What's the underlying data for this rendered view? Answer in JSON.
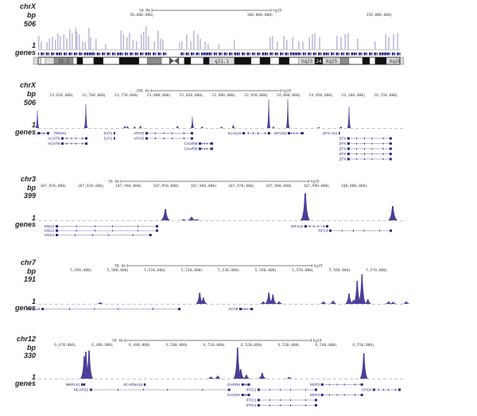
{
  "colors": {
    "signal": "#4b3f9a",
    "gene": "#2b2a83",
    "baseline": "#8a8a9a",
    "ruler": "#555555"
  },
  "assembly": "hg19",
  "panels": [
    {
      "chrom": "chrX",
      "unit_label": "bp",
      "max_label": "506",
      "min_label": "1",
      "genes_label": "genes",
      "scale": {
        "label": "50 Mb",
        "span_bp": 50000000
      },
      "ticks": [
        {
          "pos": 50000000,
          "label": "50,000,000"
        },
        {
          "pos": 100000000,
          "label": "100,000,000"
        },
        {
          "pos": 150000000,
          "label": "150,000,000"
        }
      ],
      "ymax": 506,
      "signal": [
        [
          2300000,
          250
        ],
        [
          3300000,
          150
        ],
        [
          5700000,
          130
        ],
        [
          6700000,
          200
        ],
        [
          8000000,
          230
        ],
        [
          9300000,
          180
        ],
        [
          10300000,
          300
        ],
        [
          11300000,
          250
        ],
        [
          12700000,
          280
        ],
        [
          14000000,
          200
        ],
        [
          15300000,
          380
        ],
        [
          16300000,
          300
        ],
        [
          17700000,
          400
        ],
        [
          18300000,
          330
        ],
        [
          19300000,
          280
        ],
        [
          20700000,
          150
        ],
        [
          21700000,
          130
        ],
        [
          23300000,
          400
        ],
        [
          24000000,
          230
        ],
        [
          26300000,
          200
        ],
        [
          30300000,
          100
        ],
        [
          36700000,
          350
        ],
        [
          37700000,
          280
        ],
        [
          39300000,
          230
        ],
        [
          40300000,
          300
        ],
        [
          41700000,
          180
        ],
        [
          43300000,
          150
        ],
        [
          45300000,
          280
        ],
        [
          46300000,
          330
        ],
        [
          47300000,
          430
        ],
        [
          48300000,
          250
        ],
        [
          50700000,
          150
        ],
        [
          52300000,
          350
        ],
        [
          53300000,
          200
        ],
        [
          54300000,
          180
        ],
        [
          61300000,
          130
        ],
        [
          62300000,
          150
        ],
        [
          64300000,
          280
        ],
        [
          66000000,
          150
        ],
        [
          67300000,
          350
        ],
        [
          69000000,
          280
        ],
        [
          70000000,
          200
        ],
        [
          72000000,
          150
        ],
        [
          73300000,
          100
        ],
        [
          77700000,
          100
        ],
        [
          84300000,
          180
        ],
        [
          99300000,
          230
        ],
        [
          100300000,
          250
        ],
        [
          102300000,
          150
        ],
        [
          105000000,
          250
        ],
        [
          106300000,
          180
        ],
        [
          108700000,
          230
        ],
        [
          111300000,
          150
        ],
        [
          113000000,
          150
        ],
        [
          115700000,
          230
        ],
        [
          117000000,
          280
        ],
        [
          118000000,
          300
        ],
        [
          120000000,
          230
        ],
        [
          127300000,
          250
        ],
        [
          129000000,
          230
        ],
        [
          130700000,
          280
        ],
        [
          132000000,
          300
        ],
        [
          136000000,
          200
        ],
        [
          143300000,
          150
        ],
        [
          147700000,
          280
        ],
        [
          149000000,
          230
        ],
        [
          151000000,
          280
        ],
        [
          152700000,
          300
        ]
      ],
      "ideogram": {
        "centromere": [
          57000000,
          61000000
        ],
        "bands": [
          [
            0,
            3300000,
            "light",
            ""
          ],
          [
            3300000,
            5000000,
            "white",
            ""
          ],
          [
            5000000,
            8700000,
            "light",
            ""
          ],
          [
            8700000,
            16700000,
            "gray",
            "22.2"
          ],
          [
            16700000,
            18300000,
            "white",
            ""
          ],
          [
            18300000,
            20700000,
            "black",
            ""
          ],
          [
            20700000,
            25300000,
            "white",
            ""
          ],
          [
            25300000,
            29300000,
            "black",
            ""
          ],
          [
            29300000,
            36000000,
            "white",
            ""
          ],
          [
            36000000,
            44300000,
            "black",
            ""
          ],
          [
            44300000,
            47700000,
            "white",
            ""
          ],
          [
            47700000,
            53700000,
            "gray",
            ""
          ],
          [
            53700000,
            57000000,
            "white",
            ""
          ],
          [
            61000000,
            63300000,
            "white",
            ""
          ],
          [
            63300000,
            66000000,
            "black",
            ""
          ],
          [
            66000000,
            71300000,
            "white",
            ""
          ],
          [
            71300000,
            73700000,
            "black",
            ""
          ],
          [
            73700000,
            84300000,
            "light",
            "q21.1"
          ],
          [
            84300000,
            91300000,
            "black",
            ""
          ],
          [
            91300000,
            95000000,
            "white",
            ""
          ],
          [
            95000000,
            99300000,
            "black",
            ""
          ],
          [
            99300000,
            103000000,
            "white",
            ""
          ],
          [
            103000000,
            107300000,
            "black",
            ""
          ],
          [
            107300000,
            111300000,
            "white",
            ""
          ],
          [
            111300000,
            118000000,
            "light",
            "Xq23"
          ],
          [
            118000000,
            121300000,
            "black",
            "24"
          ],
          [
            121300000,
            128700000,
            "light",
            "Xq25"
          ],
          [
            128700000,
            132300000,
            "gray",
            ""
          ],
          [
            132300000,
            138000000,
            "white",
            ""
          ],
          [
            138000000,
            141000000,
            "black",
            ""
          ],
          [
            141000000,
            143300000,
            "white",
            ""
          ],
          [
            143300000,
            148000000,
            "black",
            ""
          ],
          [
            148000000,
            155300000,
            "light",
            "Xq28"
          ]
        ]
      },
      "genes": []
    },
    {
      "chrom": "chrX",
      "unit_label": "bp",
      "max_label": "506",
      "min_label": "1",
      "genes_label": "genes",
      "scale": {
        "label": "200 kb",
        "span_bp": 200000
      },
      "ticks": [
        {
          "pos": 23650000,
          "label": "23,650,000"
        },
        {
          "pos": 23700000,
          "label": "23,700,000"
        },
        {
          "pos": 23750000,
          "label": "23,750,000"
        },
        {
          "pos": 23800000,
          "label": "23,800,000"
        },
        {
          "pos": 23850000,
          "label": "23,850,000"
        },
        {
          "pos": 23900000,
          "label": "23,900,000"
        },
        {
          "pos": 23950000,
          "label": "23,950,000"
        },
        {
          "pos": 24000000,
          "label": "24,000,000"
        },
        {
          "pos": 24050000,
          "label": "24,050,000"
        },
        {
          "pos": 24100000,
          "label": "24,100,000"
        },
        {
          "pos": 24150000,
          "label": "24,150,000"
        }
      ],
      "ymax": 506,
      "signal": [
        [
          23596100,
          310
        ],
        [
          23670800,
          420
        ],
        [
          23731000,
          40
        ],
        [
          23735000,
          35
        ],
        [
          23746000,
          30
        ],
        [
          23755000,
          45
        ],
        [
          23812000,
          40
        ],
        [
          23835000,
          200
        ],
        [
          23850000,
          30
        ],
        [
          23880000,
          25
        ],
        [
          23898000,
          60
        ],
        [
          23952700,
          506
        ],
        [
          23960000,
          30
        ],
        [
          23982100,
          506
        ],
        [
          24030000,
          20
        ],
        [
          24064000,
          30
        ],
        [
          24076500,
          380
        ]
      ],
      "genes": [
        {
          "name": "PRDX4",
          "start": 23596100,
          "end": 23614500,
          "row": 0,
          "label_side": "right"
        },
        {
          "name": "ACOT9",
          "start": 23632850,
          "end": 23673300,
          "row": 1
        },
        {
          "name": "ACOT9",
          "start": 23632850,
          "end": 23673300,
          "row": 2
        },
        {
          "name": "SAT1",
          "start": 23713700,
          "end": 23716000,
          "row": 0
        },
        {
          "name": "SAT1",
          "start": 23713700,
          "end": 23716000,
          "row": 1
        },
        {
          "name": "APOO",
          "start": 23762700,
          "end": 23836200,
          "row": 0
        },
        {
          "name": "APOO",
          "start": 23762700,
          "end": 23836200,
          "row": 1
        },
        {
          "name": "CXorf58",
          "start": 23844800,
          "end": 23866800,
          "row": 2
        },
        {
          "name": "CXorf58",
          "start": 23844800,
          "end": 23866800,
          "row": 3
        },
        {
          "name": "KLHL15",
          "start": 23912150,
          "end": 23955000,
          "row": 0
        },
        {
          "name": "EIF2S3",
          "start": 23982000,
          "end": 24006500,
          "row": 0
        },
        {
          "name": "ZFX-AS1",
          "start": 24061000,
          "end": 24062000,
          "row": 0
        },
        {
          "name": "ZFX",
          "start": 24073850,
          "end": 24142450,
          "row": 1
        },
        {
          "name": "ZFX",
          "start": 24073850,
          "end": 24142450,
          "row": 2
        },
        {
          "name": "ZFX",
          "start": 24073850,
          "end": 24142450,
          "row": 3
        },
        {
          "name": "ZFX",
          "start": 24073850,
          "end": 24142450,
          "row": 4
        },
        {
          "name": "ZFX",
          "start": 24073850,
          "end": 24142450,
          "row": 5
        }
      ]
    },
    {
      "chrom": "chr3",
      "unit_label": "bp",
      "max_label": "399",
      "min_label": "1",
      "genes_label": "genes",
      "scale": {
        "label": "50 kb",
        "span_bp": 50000
      },
      "ticks": [
        {
          "pos": 107920000,
          "label": "107,920,000"
        },
        {
          "pos": 107930000,
          "label": "107,930,000"
        },
        {
          "pos": 107940000,
          "label": "107,940,000"
        },
        {
          "pos": 107950000,
          "label": "107,950,000"
        },
        {
          "pos": 107960000,
          "label": "107,960,000"
        },
        {
          "pos": 107970000,
          "label": "107,970,000"
        },
        {
          "pos": 107980000,
          "label": "107,980,000"
        },
        {
          "pos": 107990000,
          "label": "107,990,000"
        },
        {
          "pos": 108000000,
          "label": "108,000,000"
        }
      ],
      "ymax": 399,
      "signal": [
        [
          107946640,
          165
        ],
        [
          107951500,
          15
        ],
        [
          107953610,
          50
        ],
        [
          107955000,
          15
        ],
        [
          107983840,
          399
        ],
        [
          108007100,
          210
        ]
      ],
      "genes": [
        {
          "name": "KNG1",
          "start": 107917460,
          "end": 107944730,
          "row": 0
        },
        {
          "name": "KNG1",
          "start": 107917460,
          "end": 107944730,
          "row": 1
        },
        {
          "name": "KNG1",
          "start": 107917460,
          "end": 107943000,
          "row": 2
        },
        {
          "name": "EIF4A2",
          "start": 107983630,
          "end": 107989970,
          "row": 0
        },
        {
          "name": "RFC4",
          "start": 107990200,
          "end": 108006900,
          "row": 1
        }
      ]
    },
    {
      "chrom": "chr7",
      "unit_label": "bp",
      "max_label": "191",
      "min_label": "1",
      "genes_label": "genes",
      "scale": {
        "label": "50 kb",
        "span_bp": 50000
      },
      "ticks": [
        {
          "pos": 5490000,
          "label": "5,490,000"
        },
        {
          "pos": 5500000,
          "label": "5,500,000"
        },
        {
          "pos": 5510000,
          "label": "5,510,000"
        },
        {
          "pos": 5520000,
          "label": "5,520,000"
        },
        {
          "pos": 5530000,
          "label": "5,530,000"
        },
        {
          "pos": 5540000,
          "label": "5,540,000"
        },
        {
          "pos": 5550000,
          "label": "5,550,000"
        },
        {
          "pos": 5560000,
          "label": "5,560,000"
        },
        {
          "pos": 5570000,
          "label": "5,570,000"
        }
      ],
      "ymax": 191,
      "signal": [
        [
          5492600,
          10
        ],
        [
          5519500,
          72
        ],
        [
          5520500,
          40
        ],
        [
          5536700,
          15
        ],
        [
          5538200,
          72
        ],
        [
          5539300,
          60
        ],
        [
          5541000,
          15
        ],
        [
          5553000,
          15
        ],
        [
          5555600,
          20
        ],
        [
          5559900,
          67
        ],
        [
          5561100,
          25
        ],
        [
          5562100,
          150
        ],
        [
          5563400,
          191
        ],
        [
          5565000,
          30
        ],
        [
          5570600,
          15
        ],
        [
          5571800,
          12
        ],
        [
          5575400,
          15
        ]
      ],
      "genes": [
        {
          "name": "FBXL18",
          "start": 5476700,
          "end": 5514300,
          "row": 0
        },
        {
          "name": "ACTB",
          "start": 5530200,
          "end": 5533900,
          "row": 0
        }
      ]
    },
    {
      "chrom": "chr12",
      "unit_label": "bp",
      "max_label": "330",
      "min_label": "1",
      "genes_label": "genes",
      "scale": {
        "label": "50 kb",
        "span_bp": 50000
      },
      "ticks": [
        {
          "pos": 6470000,
          "label": "6,470,000"
        },
        {
          "pos": 6480000,
          "label": "6,480,000"
        },
        {
          "pos": 6490000,
          "label": "6,490,000"
        },
        {
          "pos": 6500000,
          "label": "6,500,000"
        },
        {
          "pos": 6510000,
          "label": "6,510,000"
        },
        {
          "pos": 6520000,
          "label": "6,520,000"
        },
        {
          "pos": 6530000,
          "label": "6,530,000"
        },
        {
          "pos": 6540000,
          "label": "6,540,000"
        },
        {
          "pos": 6550000,
          "label": "6,550,000"
        }
      ],
      "ymax": 330,
      "signal": [
        [
          6472540,
          240
        ],
        [
          6472970,
          287
        ],
        [
          6473820,
          300
        ],
        [
          6506500,
          20
        ],
        [
          6508330,
          30
        ],
        [
          6513650,
          330
        ],
        [
          6514500,
          100
        ],
        [
          6516000,
          40
        ],
        [
          6520260,
          60
        ],
        [
          6527500,
          15
        ],
        [
          6547520,
          270
        ]
      ],
      "genes": [
        {
          "name": "MRPL51",
          "start": 6471700,
          "end": 6472800,
          "row": 0
        },
        {
          "name": "NCAPD2",
          "start": 6474000,
          "end": 6511700,
          "row": 1
        },
        {
          "name": "SCARNA10",
          "start": 6488500,
          "end": 6489000,
          "row": 0
        },
        {
          "name": "GAPDH",
          "start": 6514700,
          "end": 6517000,
          "row": 0
        },
        {
          "name": "GAPDH",
          "start": 6514700,
          "end": 6517000,
          "row": 2
        },
        {
          "name": "IFFO1",
          "start": "6519000",
          "end": 6535000,
          "row": 1
        },
        {
          "name": "IFFO1",
          "start": 6519000,
          "end": 6535000,
          "row": 3
        },
        {
          "name": "IFFO1",
          "start": 6519000,
          "end": 6535000,
          "row": 4
        },
        {
          "name": "NOP2",
          "start": 6536000,
          "end": 6547300,
          "row": 0
        },
        {
          "name": "NOP2",
          "start": 6536000,
          "end": 6547300,
          "row": 2
        },
        {
          "name": "CHD4",
          "start": 6549900,
          "end": 6557400,
          "row": 1
        }
      ]
    }
  ]
}
